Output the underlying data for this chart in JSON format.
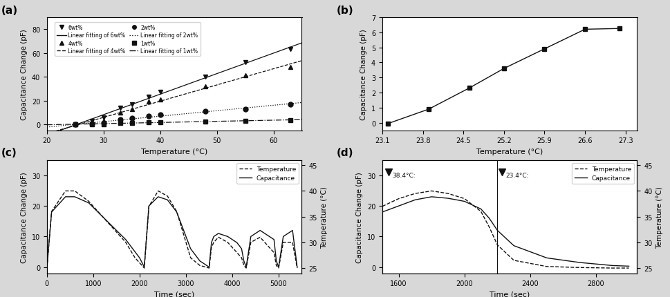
{
  "panel_a": {
    "title": "(a)",
    "xlabel": "Temperature (°C)",
    "ylabel": "Capacitance Change (pF)",
    "xlim": [
      20,
      65
    ],
    "ylim": [
      -5,
      90
    ],
    "xticks": [
      20,
      30,
      40,
      50,
      60
    ],
    "yticks": [
      0,
      20,
      40,
      60,
      80
    ],
    "series": {
      "6wt": {
        "x": [
          25,
          28,
          30,
          33,
          35,
          38,
          40,
          48,
          55,
          63
        ],
        "y": [
          0,
          3,
          6,
          14,
          17,
          23,
          27,
          40,
          52,
          63
        ],
        "marker": "v",
        "linestyle": "-",
        "label_data": "6wt%",
        "label_fit": "Linear fitting of 6wt%"
      },
      "4wt": {
        "x": [
          25,
          28,
          30,
          33,
          35,
          38,
          40,
          48,
          55,
          63
        ],
        "y": [
          0,
          1,
          3,
          10,
          13,
          19,
          21,
          32,
          41,
          48
        ],
        "marker": "^",
        "linestyle": "--",
        "label_data": "4wt%",
        "label_fit": "Linear fitting of 4wt%"
      },
      "2wt": {
        "x": [
          25,
          28,
          30,
          33,
          35,
          38,
          40,
          48,
          55,
          63
        ],
        "y": [
          0,
          0.5,
          1,
          4,
          5,
          7,
          8,
          11,
          13,
          17
        ],
        "marker": "o",
        "linestyle": ":",
        "label_data": "2wt%",
        "label_fit": "Linear fitting of 2wt%"
      },
      "1wt": {
        "x": [
          25,
          28,
          30,
          33,
          35,
          38,
          40,
          48,
          55,
          63
        ],
        "y": [
          0,
          0.2,
          0.3,
          1,
          1.2,
          1.5,
          2,
          2.5,
          3,
          3.5
        ],
        "marker": "s",
        "linestyle": "-.",
        "label_data": "1wt%",
        "label_fit": "Linear fitting of 1wt%"
      }
    }
  },
  "panel_b": {
    "title": "(b)",
    "xlabel": "Temperature (°C)",
    "ylabel": "Capacitance Change (pF)",
    "xlim": [
      23.1,
      27.5
    ],
    "ylim": [
      -0.5,
      7
    ],
    "xticks": [
      23.1,
      23.8,
      24.5,
      25.2,
      25.9,
      26.6,
      27.3
    ],
    "yticks": [
      0,
      1,
      2,
      3,
      4,
      5,
      6,
      7
    ],
    "x": [
      23.2,
      23.9,
      24.6,
      25.2,
      25.9,
      26.6,
      27.2
    ],
    "y": [
      -0.05,
      0.9,
      2.3,
      3.6,
      4.9,
      6.2,
      6.25
    ]
  },
  "panel_c": {
    "title": "(c)",
    "xlabel": "Time (sec)",
    "ylabel_left": "Capacitance Change (pF)",
    "ylabel_right": "Temperature (°C)",
    "xlim": [
      0,
      5500
    ],
    "ylim_left": [
      -2,
      35
    ],
    "ylim_right": [
      24,
      46
    ],
    "xticks": [
      0,
      1000,
      2000,
      3000,
      4000,
      5000
    ],
    "yticks_left": [
      0,
      10,
      20,
      30
    ],
    "yticks_right": [
      25,
      30,
      35,
      40,
      45
    ],
    "temp_x": [
      0,
      100,
      400,
      600,
      750,
      900,
      1100,
      1300,
      1500,
      1700,
      1900,
      2000,
      2050,
      2100,
      2200,
      2400,
      2600,
      2800,
      3000,
      3100,
      3300,
      3500,
      3550,
      3600,
      3700,
      3900,
      4100,
      4200,
      4250,
      4300,
      4400,
      4600,
      4800,
      4900,
      4950,
      5000,
      5100,
      5300,
      5400
    ],
    "temp_y": [
      25,
      36,
      40,
      40,
      39,
      38,
      36,
      34,
      32,
      30,
      27,
      26,
      25.5,
      25,
      37,
      40,
      39,
      36,
      30,
      27,
      25.5,
      25,
      29,
      30,
      31,
      30,
      28,
      27,
      25.5,
      25,
      30,
      31,
      29,
      28,
      25.5,
      25,
      30,
      30,
      25
    ],
    "cap_x": [
      0,
      100,
      400,
      600,
      750,
      900,
      1100,
      1300,
      1500,
      1700,
      1900,
      2000,
      2050,
      2100,
      2200,
      2400,
      2600,
      2800,
      3000,
      3100,
      3300,
      3500,
      3550,
      3600,
      3700,
      3900,
      4100,
      4200,
      4250,
      4300,
      4400,
      4600,
      4800,
      4900,
      4950,
      5000,
      5100,
      5300,
      5400
    ],
    "cap_y": [
      0,
      18,
      23,
      23,
      22,
      21,
      18,
      15,
      12,
      9,
      5,
      3,
      1.5,
      0,
      20,
      23,
      22,
      18,
      10,
      6,
      2,
      0,
      8,
      10,
      11,
      10,
      8,
      6,
      2,
      0,
      10,
      12,
      10,
      9,
      2,
      0,
      10,
      12,
      0
    ]
  },
  "panel_d": {
    "title": "(d)",
    "xlabel": "Time (sec)",
    "ylabel_left": "Capacitance Change (pF)",
    "ylabel_right": "Temperature (°C)",
    "xlim": [
      1500,
      3050
    ],
    "ylim_left": [
      -2,
      35
    ],
    "ylim_right": [
      24,
      46
    ],
    "xticks": [
      1600,
      2000,
      2400,
      2800
    ],
    "yticks_left": [
      0,
      10,
      20,
      30
    ],
    "yticks_right": [
      25,
      30,
      35,
      40,
      45
    ],
    "vline_x": 2200,
    "ann1_x": 1530,
    "ann1_y": 31,
    "ann1_text": "38.4°C:",
    "ann2_x": 2220,
    "ann2_y": 31,
    "ann2_text": "23.4°C:",
    "temp_x": [
      1500,
      1600,
      1700,
      1800,
      1900,
      2000,
      2100,
      2150,
      2200,
      2300,
      2500,
      2700,
      2900,
      3000
    ],
    "temp_y": [
      37.0,
      38.5,
      39.5,
      40.0,
      39.5,
      38.5,
      36.0,
      33.0,
      29.5,
      26.5,
      25.3,
      25.1,
      25.0,
      25.0
    ],
    "cap_x": [
      1500,
      1600,
      1700,
      1800,
      1900,
      2000,
      2100,
      2150,
      2200,
      2300,
      2500,
      2700,
      2900,
      3000
    ],
    "cap_y": [
      18.0,
      20.0,
      22.0,
      23.0,
      22.5,
      21.5,
      19.0,
      16.0,
      12.0,
      7.0,
      3.0,
      1.5,
      0.5,
      0.3
    ]
  },
  "bg_color": "#d8d8d8",
  "plot_bg": "#ffffff",
  "color_dark": "#111111"
}
